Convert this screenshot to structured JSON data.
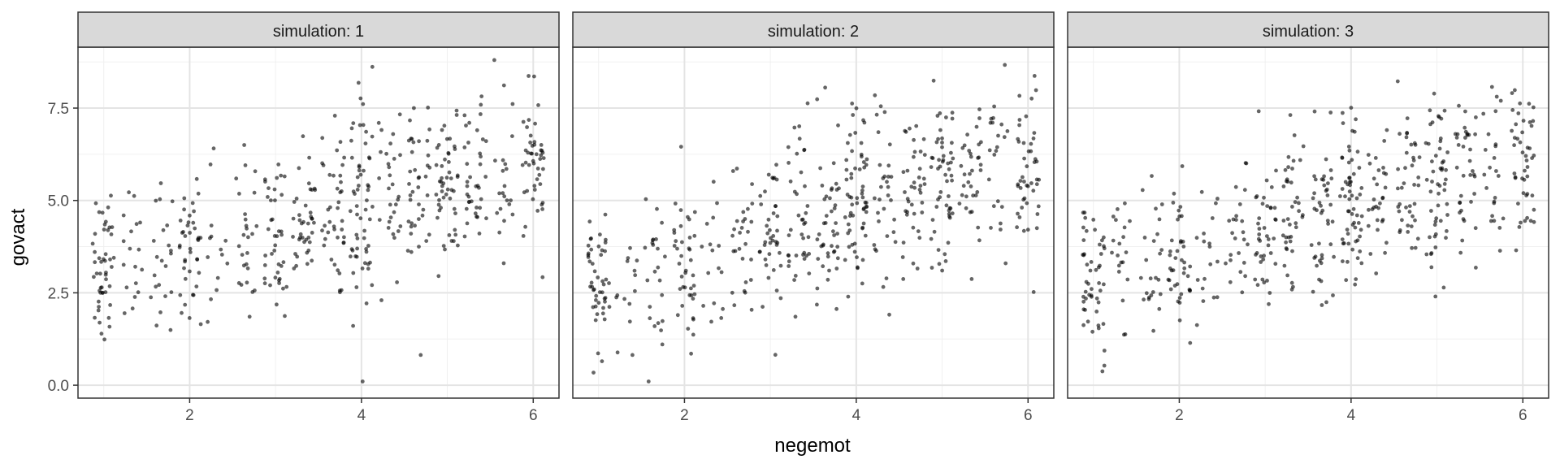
{
  "chart_data": {
    "type": "scatter",
    "facet_variable": "simulation",
    "facets": [
      "simulation: 1",
      "simulation: 2",
      "simulation: 3"
    ],
    "xlabel": "negemot",
    "ylabel": "govact",
    "xlim": [
      0.7,
      6.3
    ],
    "ylim": [
      -0.35,
      9.15
    ],
    "x_ticks": [
      2,
      4,
      6
    ],
    "y_ticks": [
      0.0,
      2.5,
      5.0,
      7.5
    ],
    "y_tick_labels": [
      "0.0",
      "2.5",
      "5.0",
      "7.5"
    ],
    "x_levels": [
      1.0,
      1.33,
      1.67,
      2.0,
      2.33,
      2.67,
      3.0,
      3.33,
      3.67,
      4.0,
      4.33,
      4.67,
      5.0,
      5.33,
      5.67,
      6.0
    ],
    "jitter_width": 0.13,
    "point_color": "#000000",
    "point_alpha": 0.6,
    "panels": [
      {
        "counts": [
          48,
          18,
          22,
          40,
          14,
          26,
          40,
          40,
          40,
          60,
          30,
          40,
          50,
          38,
          22,
          46
        ],
        "means": [
          3.0,
          3.2,
          3.5,
          3.7,
          3.8,
          3.9,
          4.2,
          4.4,
          4.6,
          4.8,
          5.0,
          5.1,
          5.3,
          5.5,
          5.6,
          5.9
        ],
        "sds": [
          1.0,
          1.0,
          1.1,
          1.1,
          1.0,
          1.1,
          1.2,
          1.1,
          1.2,
          1.3,
          1.2,
          1.2,
          1.1,
          1.1,
          1.2,
          1.2
        ]
      },
      {
        "counts": [
          48,
          14,
          24,
          40,
          16,
          28,
          40,
          40,
          44,
          62,
          32,
          40,
          54,
          34,
          22,
          46
        ],
        "means": [
          2.9,
          2.9,
          3.3,
          3.5,
          3.7,
          3.9,
          4.2,
          4.4,
          4.6,
          4.9,
          5.1,
          5.2,
          5.5,
          5.6,
          6.0,
          6.1
        ],
        "sds": [
          0.9,
          1.0,
          1.0,
          1.1,
          1.0,
          1.1,
          1.1,
          1.1,
          1.1,
          1.2,
          1.1,
          1.1,
          1.1,
          1.1,
          1.1,
          1.1
        ]
      },
      {
        "counts": [
          50,
          20,
          24,
          40,
          18,
          24,
          40,
          40,
          44,
          60,
          30,
          40,
          52,
          36,
          24,
          46
        ],
        "means": [
          3.2,
          3.3,
          3.5,
          3.7,
          3.8,
          3.9,
          4.2,
          4.4,
          4.5,
          4.8,
          5.0,
          5.1,
          5.3,
          5.5,
          5.6,
          5.9
        ],
        "sds": [
          1.0,
          1.0,
          1.1,
          1.1,
          1.1,
          1.1,
          1.1,
          1.1,
          1.2,
          1.2,
          1.1,
          1.1,
          1.2,
          1.2,
          1.2,
          1.2
        ]
      }
    ]
  }
}
